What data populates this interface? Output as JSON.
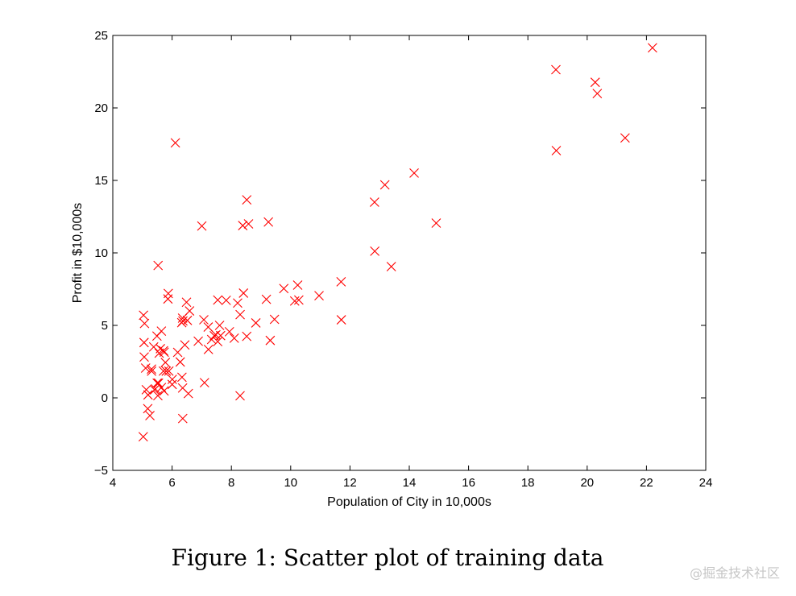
{
  "chart_data": {
    "type": "scatter",
    "title": "",
    "xlabel": "Population of City in 10,000s",
    "ylabel": "Profit in $10,000s",
    "xlim": [
      4,
      24
    ],
    "ylim": [
      -5,
      25
    ],
    "xticks": [
      4,
      6,
      8,
      10,
      12,
      14,
      16,
      18,
      20,
      22,
      24
    ],
    "yticks": [
      -5,
      0,
      5,
      10,
      15,
      20,
      25
    ],
    "grid": false,
    "marker": "x",
    "marker_color": "#ff0000",
    "series": [
      {
        "name": "Training data",
        "x": [
          6.1101,
          5.5277,
          8.5186,
          7.0032,
          5.8598,
          8.3829,
          7.4764,
          8.5781,
          6.4862,
          5.0546,
          5.7107,
          14.164,
          5.734,
          8.4084,
          5.6407,
          5.3794,
          6.3654,
          5.1301,
          6.4296,
          7.0708,
          6.1891,
          20.27,
          5.4901,
          6.3261,
          5.5649,
          18.945,
          12.828,
          10.957,
          13.176,
          22.203,
          5.2524,
          6.5894,
          9.2482,
          5.8918,
          8.2111,
          7.9334,
          8.0959,
          5.6063,
          12.836,
          6.3534,
          5.4069,
          6.8825,
          11.708,
          5.7737,
          7.8247,
          7.0931,
          5.0702,
          5.8014,
          11.7,
          5.5416,
          7.5402,
          5.3077,
          7.4239,
          7.6031,
          6.3328,
          6.3589,
          6.2742,
          5.6397,
          9.3102,
          9.4536,
          8.8254,
          5.1793,
          21.279,
          14.908,
          18.959,
          7.2182,
          8.2951,
          10.236,
          5.4994,
          20.341,
          10.136,
          7.3345,
          6.0062,
          7.2259,
          5.0269,
          6.5479,
          7.5386,
          5.0365,
          10.274,
          5.1077,
          5.7292,
          5.1884,
          6.3557,
          9.7687,
          6.5159,
          8.5172,
          9.1802,
          6.002,
          5.5204,
          5.0594,
          5.7077,
          7.6366,
          5.8707,
          5.3054,
          8.2934,
          13.394,
          5.4369
        ],
        "y": [
          17.592,
          9.1302,
          13.662,
          11.854,
          6.8233,
          11.886,
          4.3483,
          12.0,
          6.5987,
          3.8166,
          3.2522,
          15.505,
          3.1551,
          7.2258,
          0.71618,
          3.5129,
          5.3048,
          0.56077,
          3.6518,
          5.3893,
          3.1386,
          21.767,
          4.263,
          5.1875,
          3.0825,
          22.638,
          13.501,
          7.0467,
          14.692,
          24.147,
          -1.22,
          5.9966,
          12.134,
          1.8495,
          6.5426,
          4.5623,
          4.1164,
          3.3928,
          10.117,
          5.4974,
          0.55657,
          3.9115,
          5.3854,
          2.4406,
          6.7318,
          1.0463,
          5.1337,
          1.844,
          8.0043,
          1.0179,
          6.7504,
          1.8396,
          4.2885,
          4.9981,
          1.4233,
          -1.4211,
          2.4756,
          4.6042,
          3.9624,
          5.4141,
          5.1694,
          -0.74279,
          17.929,
          12.054,
          17.054,
          4.8852,
          5.7442,
          7.7754,
          1.0173,
          20.992,
          6.6799,
          4.0259,
          1.2784,
          3.3411,
          -2.6807,
          0.29678,
          3.8845,
          5.7014,
          6.7526,
          2.0576,
          0.47953,
          0.20421,
          0.67861,
          7.5435,
          5.3436,
          4.2415,
          6.7981,
          0.92695,
          0.152,
          2.8214,
          1.8451,
          4.2959,
          7.2029,
          1.9869,
          0.14454,
          9.0551,
          0.61705
        ]
      }
    ]
  },
  "figure": {
    "caption": "Figure 1: Scatter plot of training data"
  },
  "watermark": {
    "text": "@掘金技术社区"
  }
}
